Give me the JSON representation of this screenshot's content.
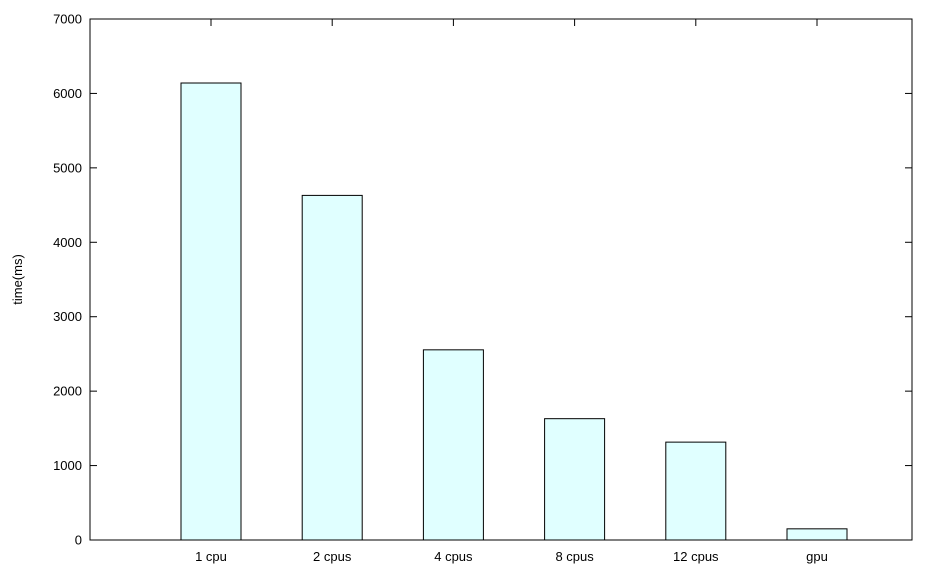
{
  "chart_data": {
    "type": "bar",
    "title": "",
    "xlabel": "",
    "ylabel": "time(ms)",
    "categories": [
      "1 cpu",
      "2 cpus",
      "4 cpus",
      "8 cpus",
      "12 cpus",
      "gpu"
    ],
    "values": [
      6140,
      4630,
      2555,
      1630,
      1315,
      150
    ],
    "ylim": [
      0,
      7000
    ],
    "yticks": [
      "0",
      "1000",
      "2000",
      "3000",
      "4000",
      "5000",
      "6000",
      "7000"
    ],
    "grid": false,
    "legend": "none",
    "colors": {
      "bar_fill": "#e0ffff",
      "bar_stroke": "#000000",
      "axis": "#000000"
    }
  }
}
